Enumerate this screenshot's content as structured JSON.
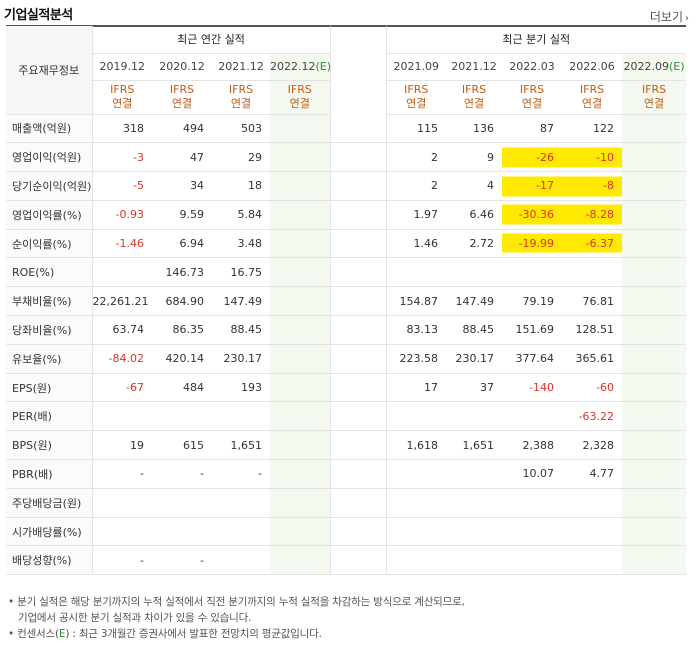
{
  "header": {
    "title": "기업실적분석",
    "more_label": "더보기",
    "more_arrow": "›"
  },
  "table": {
    "label_header": "주요재무정보",
    "annual_group": "최근 연간 실적",
    "quarter_group": "최근 분기 실적",
    "annual_dates": [
      "2019.12",
      "2020.12",
      "2021.12",
      "2022.12"
    ],
    "annual_est_mark": "(E)",
    "quarter_dates": [
      "2021.09",
      "2021.12",
      "2022.03",
      "2022.06",
      "2022.09"
    ],
    "quarter_est_mark": "(E)",
    "type_line1": "IFRS",
    "type_line2": "연결",
    "rows": [
      {
        "label": "매출액(억원)",
        "annual": [
          "318",
          "494",
          "503",
          ""
        ],
        "quarter": [
          "115",
          "136",
          "87",
          "122",
          ""
        ]
      },
      {
        "label": "영업이익(억원)",
        "annual": [
          "-3",
          "47",
          "29",
          ""
        ],
        "quarter": [
          "2",
          "9",
          "-26",
          "-10",
          ""
        ]
      },
      {
        "label": "당기순이익(억원)",
        "annual": [
          "-5",
          "34",
          "18",
          ""
        ],
        "quarter": [
          "2",
          "4",
          "-17",
          "-8",
          ""
        ]
      },
      {
        "label": "영업이익률(%)",
        "annual": [
          "-0.93",
          "9.59",
          "5.84",
          ""
        ],
        "quarter": [
          "1.97",
          "6.46",
          "-30.36",
          "-8.28",
          ""
        ]
      },
      {
        "label": "순이익률(%)",
        "annual": [
          "-1.46",
          "6.94",
          "3.48",
          ""
        ],
        "quarter": [
          "1.46",
          "2.72",
          "-19.99",
          "-6.37",
          ""
        ]
      },
      {
        "label": "ROE(%)",
        "annual": [
          "",
          "146.73",
          "16.75",
          ""
        ],
        "quarter": [
          "",
          "",
          "",
          "",
          ""
        ]
      },
      {
        "label": "부채비율(%)",
        "annual": [
          "22,261.21",
          "684.90",
          "147.49",
          ""
        ],
        "quarter": [
          "154.87",
          "147.49",
          "79.19",
          "76.81",
          ""
        ]
      },
      {
        "label": "당좌비율(%)",
        "annual": [
          "63.74",
          "86.35",
          "88.45",
          ""
        ],
        "quarter": [
          "83.13",
          "88.45",
          "151.69",
          "128.51",
          ""
        ]
      },
      {
        "label": "유보율(%)",
        "annual": [
          "-84.02",
          "420.14",
          "230.17",
          ""
        ],
        "quarter": [
          "223.58",
          "230.17",
          "377.64",
          "365.61",
          ""
        ]
      },
      {
        "label": "EPS(원)",
        "annual": [
          "-67",
          "484",
          "193",
          ""
        ],
        "quarter": [
          "17",
          "37",
          "-140",
          "-60",
          ""
        ]
      },
      {
        "label": "PER(배)",
        "annual": [
          "",
          "",
          "",
          ""
        ],
        "quarter": [
          "",
          "",
          "",
          "-63.22",
          ""
        ]
      },
      {
        "label": "BPS(원)",
        "annual": [
          "19",
          "615",
          "1,651",
          ""
        ],
        "quarter": [
          "1,618",
          "1,651",
          "2,388",
          "2,328",
          ""
        ]
      },
      {
        "label": "PBR(배)",
        "annual": [
          "-",
          "-",
          "-",
          ""
        ],
        "quarter": [
          "",
          "",
          "10.07",
          "4.77",
          ""
        ]
      },
      {
        "label": "주당배당금(원)",
        "annual": [
          "",
          "",
          "",
          ""
        ],
        "quarter": [
          "",
          "",
          "",
          "",
          ""
        ]
      },
      {
        "label": "시가배당률(%)",
        "annual": [
          "",
          "",
          "",
          ""
        ],
        "quarter": [
          "",
          "",
          "",
          "",
          ""
        ]
      },
      {
        "label": "배당성향(%)",
        "annual": [
          "-",
          "-",
          "",
          ""
        ],
        "quarter": [
          "",
          "",
          "",
          "",
          ""
        ]
      }
    ]
  },
  "highlight_color": "#ffe900",
  "negative_color": "#d8342a",
  "notes": {
    "line1": "• 분기 실적은 해당 분기까지의 누적 실적에서 직전 분기까지의 누적 실적을 차감하는 방식으로 계산되므로,",
    "line2": "기업에서 공시한 분기 실적과 차이가 있을 수 있습니다.",
    "line3_pre": "• 컨센서스(",
    "line3_e": "E",
    "line3_post": ") : 최근 3개월간 증권사에서 발표한 전망치의 평균값입니다."
  }
}
